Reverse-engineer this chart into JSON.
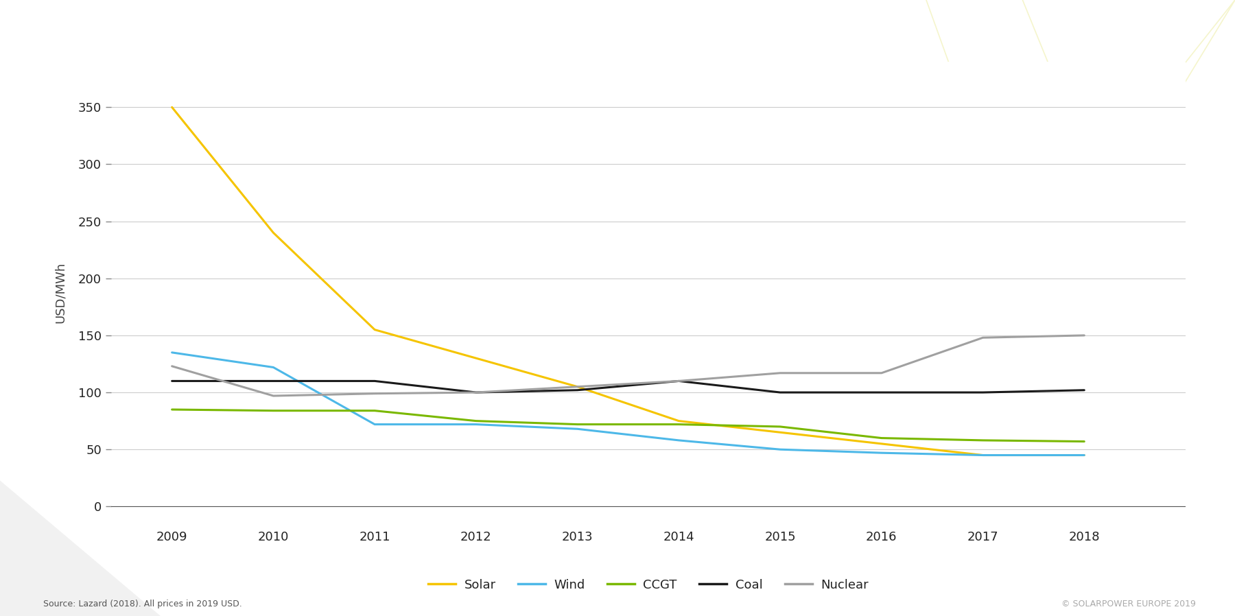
{
  "years": [
    2009,
    2010,
    2011,
    2012,
    2013,
    2014,
    2015,
    2016,
    2017,
    2018
  ],
  "solar": [
    350,
    240,
    155,
    130,
    105,
    75,
    65,
    55,
    45,
    45
  ],
  "wind": [
    135,
    122,
    72,
    72,
    68,
    58,
    50,
    47,
    45,
    45
  ],
  "ccgt": [
    85,
    84,
    84,
    75,
    72,
    72,
    70,
    60,
    58,
    57
  ],
  "coal": [
    110,
    110,
    110,
    100,
    102,
    110,
    100,
    100,
    100,
    102
  ],
  "nuclear": [
    123,
    97,
    99,
    100,
    105,
    110,
    117,
    117,
    148,
    150
  ],
  "solar_color": "#f5c400",
  "wind_color": "#4db8e8",
  "ccgt_color": "#7ab800",
  "coal_color": "#1a1a1a",
  "nuclear_color": "#a0a0a0",
  "background_color": "#ffffff",
  "ylabel": "USD/MWh",
  "yticks": [
    0,
    50,
    100,
    150,
    200,
    250,
    300,
    350
  ],
  "ylim": [
    -15,
    390
  ],
  "xlim": [
    2008.4,
    2019.0
  ],
  "source_text": "Source: Lazard (2018). All prices in 2019 USD.",
  "copyright_text": "© SOLARPOWER EUROPE 2019",
  "legend_labels": [
    "Solar",
    "Wind",
    "CCGT",
    "Coal",
    "Nuclear"
  ],
  "line_width": 2.2,
  "watermark_color": "#f5f5cc",
  "grid_color": "#cccccc"
}
